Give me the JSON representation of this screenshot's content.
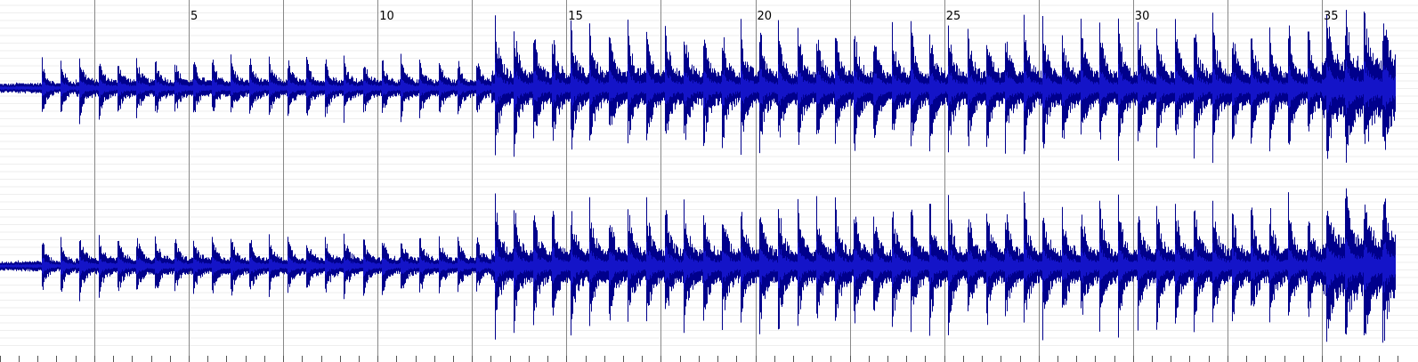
{
  "app": {
    "view": "waveform-editor",
    "channels": [
      "channel-1",
      "channel-2"
    ]
  },
  "ruler": {
    "labels": [
      "5",
      "10",
      "15",
      "20",
      "25",
      "30",
      "35"
    ],
    "label_positions_seconds": [
      5,
      10,
      15,
      20,
      25,
      30,
      35
    ],
    "major_tick_interval_seconds": 2.5,
    "visible_range_seconds": [
      0,
      37
    ]
  },
  "colors": {
    "background": "#ffffff",
    "gridline_major": "#888888",
    "gridline_minor": "#eeeeee",
    "waveform_outer": "#00008c",
    "waveform_inner": "#1414c8",
    "tick": "#555555"
  }
}
